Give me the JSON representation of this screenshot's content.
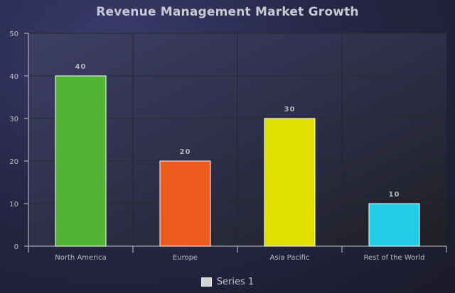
{
  "chart_data": {
    "type": "bar",
    "title": "Revenue Management Market Growth",
    "xlabel": "",
    "ylabel": "",
    "categories": [
      "North America",
      "Europe",
      "Asia Pacific",
      "Rest of the World"
    ],
    "series": [
      {
        "name": "Series 1",
        "values": [
          40,
          20,
          30,
          10
        ],
        "colors": [
          "#52b435",
          "#ee5a1f",
          "#e0e000",
          "#24cbe5"
        ]
      }
    ],
    "ylim": [
      0,
      50
    ],
    "yticks": [
      "0",
      "10",
      "20",
      "30",
      "40",
      "50"
    ],
    "data_labels": [
      "40",
      "20",
      "30",
      "10"
    ],
    "grid": true,
    "legend_position": "bottom-center"
  }
}
